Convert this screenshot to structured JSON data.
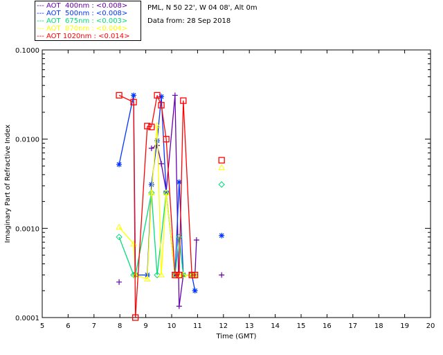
{
  "header": {
    "site": "PML, N 50 22', W 04 08', Alt 0m",
    "date": "Data from: 28 Sep 2018"
  },
  "chart_data": {
    "type": "scatter",
    "xlabel": "Time (GMT)",
    "ylabel": "Imaginary Part of Refractive Index",
    "xlim": [
      5,
      20
    ],
    "ylim": [
      0.0001,
      0.1
    ],
    "yscale": "log",
    "xticks": [
      "5",
      "6",
      "7",
      "8",
      "9",
      "10",
      "11",
      "12",
      "13",
      "14",
      "15",
      "16",
      "17",
      "18",
      "19",
      "20"
    ],
    "yticks": [
      "0.0001",
      "0.0010",
      "0.0100",
      "0.1000"
    ],
    "series": [
      {
        "name": "AOT  400nm : <0.008>",
        "color": "#6600aa",
        "marker": "plus",
        "points": [
          [
            7.97,
            0.00025
          ],
          [
            9.22,
            0.0079
          ],
          [
            9.44,
            0.0085
          ],
          [
            9.6,
            0.0053
          ],
          [
            9.79,
            0.0026
          ],
          [
            10.13,
            0.031
          ],
          [
            10.29,
            0.000134
          ],
          [
            10.45,
            0.0003
          ],
          [
            10.78,
            0.0003
          ],
          [
            10.9,
            0.0003
          ],
          [
            10.96,
            0.00074
          ],
          [
            11.93,
            0.0003
          ]
        ]
      },
      {
        "name": "AOT  500nm : <0.008>",
        "color": "#0033ff",
        "marker": "star",
        "points": [
          [
            7.97,
            0.0052
          ],
          [
            8.53,
            0.031
          ],
          [
            8.6,
            0.0003
          ],
          [
            9.06,
            0.0003
          ],
          [
            9.22,
            0.0031
          ],
          [
            9.44,
            0.0096
          ],
          [
            9.6,
            0.03
          ],
          [
            9.79,
            0.0025
          ],
          [
            10.13,
            0.0003
          ],
          [
            10.29,
            0.0033
          ],
          [
            10.45,
            0.0003
          ],
          [
            10.78,
            0.0003
          ],
          [
            10.9,
            0.0002
          ],
          [
            11.93,
            0.00083
          ]
        ]
      },
      {
        "name": "AOT  675nm : <0.003>",
        "color": "#00dd77",
        "marker": "diamond",
        "points": [
          [
            7.97,
            0.0008
          ],
          [
            8.53,
            0.0003
          ],
          [
            8.6,
            0.0003
          ],
          [
            9.22,
            0.0025
          ],
          [
            9.44,
            0.0003
          ],
          [
            9.79,
            0.0025
          ],
          [
            10.13,
            0.0003
          ],
          [
            10.29,
            0.0008
          ],
          [
            10.45,
            0.0003
          ],
          [
            10.78,
            0.0003
          ],
          [
            10.9,
            0.0003
          ],
          [
            11.93,
            0.0031
          ]
        ]
      },
      {
        "name": "AOT  870nm : <0.004>",
        "color": "#ffff00",
        "marker": "triangle",
        "points": [
          [
            7.97,
            0.00103
          ],
          [
            8.53,
            0.00067
          ],
          [
            8.6,
            0.0003
          ],
          [
            9.06,
            0.00027
          ],
          [
            9.22,
            0.0025
          ],
          [
            9.44,
            0.0142
          ],
          [
            9.6,
            0.0003
          ],
          [
            9.79,
            0.0025
          ],
          [
            10.13,
            0.0003
          ],
          [
            10.29,
            0.0003
          ],
          [
            10.45,
            0.0003
          ],
          [
            10.78,
            0.0003
          ],
          [
            10.9,
            0.0003
          ],
          [
            11.93,
            0.0048
          ]
        ]
      },
      {
        "name": "AOT 1020nm : <0.014>",
        "color": "#ff0000",
        "marker": "square",
        "points": [
          [
            7.97,
            0.031
          ],
          [
            8.53,
            0.026
          ],
          [
            8.6,
            0.0001
          ],
          [
            9.06,
            0.014
          ],
          [
            9.22,
            0.0137
          ],
          [
            9.44,
            0.031
          ],
          [
            9.6,
            0.024
          ],
          [
            9.79,
            0.01
          ],
          [
            10.13,
            0.0003
          ],
          [
            10.29,
            0.0003
          ],
          [
            10.45,
            0.027
          ],
          [
            10.78,
            0.0003
          ],
          [
            10.9,
            0.0003
          ],
          [
            11.93,
            0.0058
          ]
        ]
      }
    ]
  }
}
